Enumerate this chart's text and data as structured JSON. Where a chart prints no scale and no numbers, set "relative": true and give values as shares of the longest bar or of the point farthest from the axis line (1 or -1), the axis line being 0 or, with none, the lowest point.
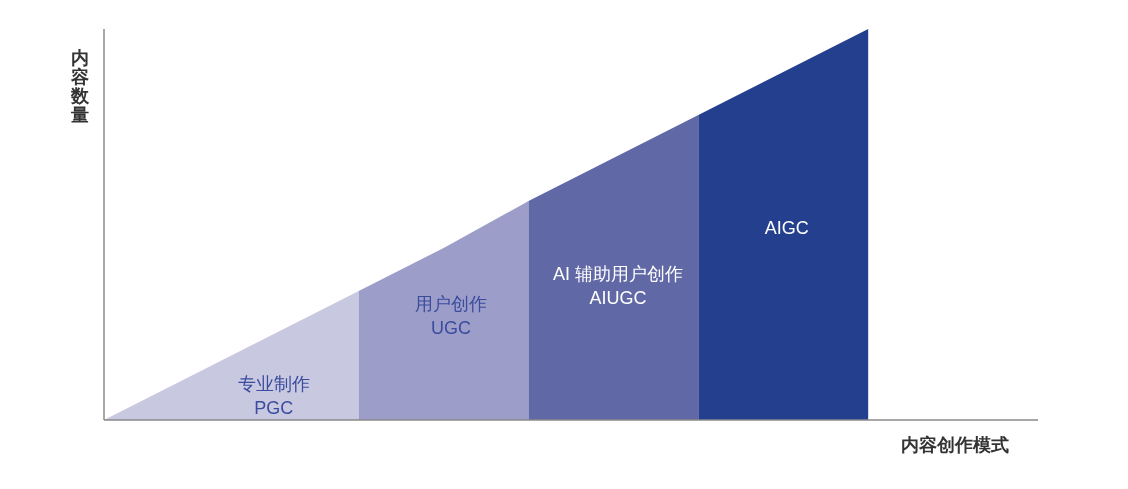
{
  "chart_data": {
    "type": "area",
    "relative": true,
    "xlabel": "内容创作模式",
    "ylabel": "内容数量",
    "categories": [
      null,
      null,
      null,
      null,
      null,
      null,
      null,
      null,
      null,
      null,
      null,
      null
    ],
    "series": [
      {
        "name": "专业制作\nPGC",
        "color": "#c8c9e1",
        "values": [
          0,
          0.11,
          0.22,
          0.33,
          null,
          null,
          null,
          null,
          null,
          null,
          null,
          null
        ]
      },
      {
        "name": "用户创作\nUGC",
        "color": "#9c9ec9",
        "values": [
          null,
          null,
          null,
          0.33,
          0.44,
          0.56,
          null,
          null,
          null,
          null,
          null,
          null
        ]
      },
      {
        "name": "AI 辅助用户创作\nAIUGC",
        "color": "#6168a6",
        "values": [
          null,
          null,
          null,
          null,
          null,
          0.56,
          0.67,
          0.78,
          null,
          null,
          null,
          null
        ]
      },
      {
        "name": "AIGC",
        "color": "#243f8d",
        "values": [
          null,
          null,
          null,
          null,
          null,
          null,
          null,
          0.78,
          0.89,
          1,
          null,
          null
        ]
      }
    ]
  }
}
